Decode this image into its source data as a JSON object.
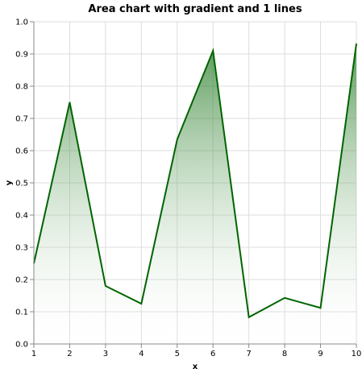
{
  "colors": {
    "line": "#006400",
    "gradient_top": "#006400",
    "gradient_bottom": "#ffffff"
  },
  "chart_data": {
    "type": "area",
    "title": "Area chart with gradient and 1 lines",
    "xlabel": "x",
    "ylabel": "y",
    "xlim": [
      1,
      10
    ],
    "ylim": [
      0,
      1.0
    ],
    "grid": true,
    "x_ticks": [
      "1",
      "2",
      "3",
      "4",
      "5",
      "6",
      "7",
      "8",
      "9",
      "10"
    ],
    "y_ticks": [
      "0.0",
      "0.1",
      "0.2",
      "0.3",
      "0.4",
      "0.5",
      "0.6",
      "0.7",
      "0.8",
      "0.9",
      "1.0"
    ],
    "x": [
      1,
      2,
      3,
      4,
      5,
      6,
      7,
      8,
      9,
      10
    ],
    "series": [
      {
        "values": [
          0.25,
          0.75,
          0.18,
          0.125,
          0.635,
          0.91,
          0.083,
          0.143,
          0.112,
          0.932
        ]
      }
    ]
  }
}
